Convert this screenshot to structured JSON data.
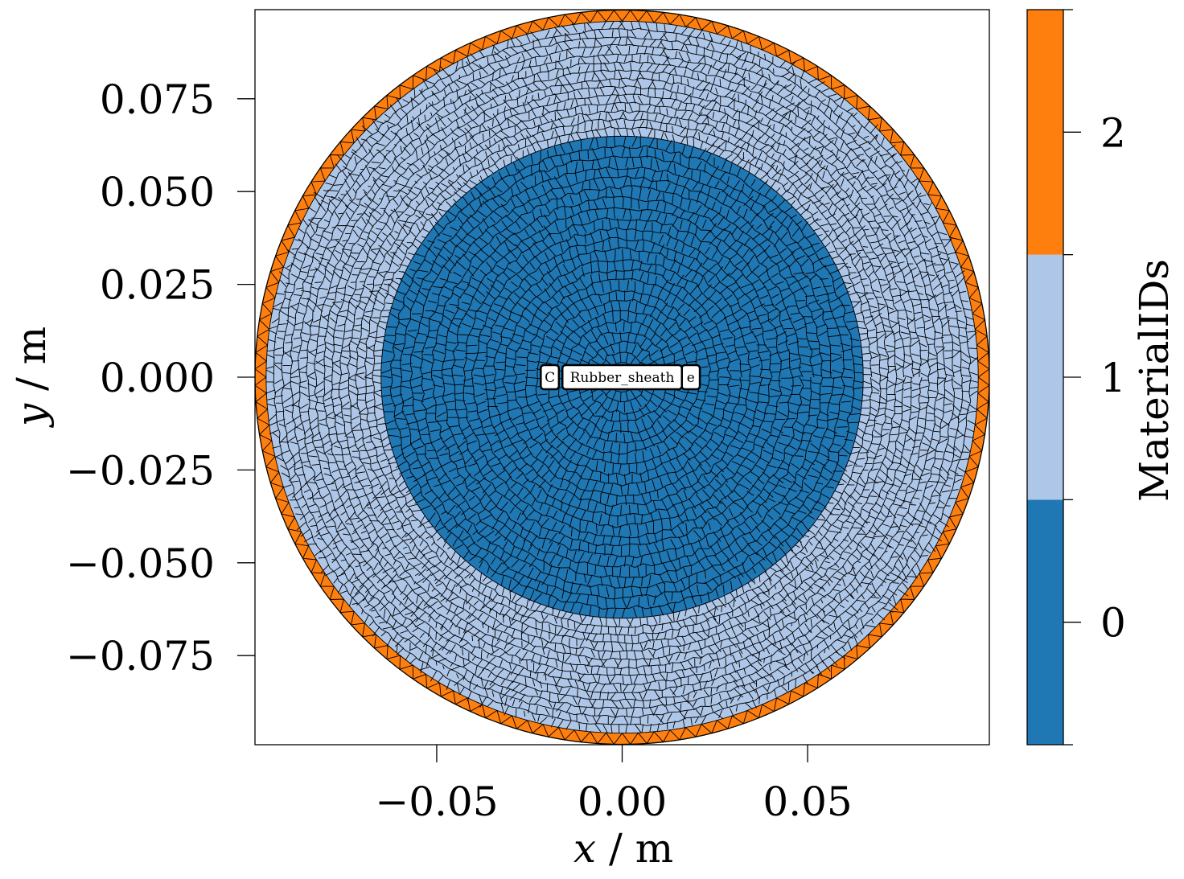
{
  "chart_data": {
    "type": "mesh",
    "xlabel_var": "x",
    "xlabel_unit": " / m",
    "ylabel_var": "y",
    "ylabel_unit": " / m",
    "xlim": [
      -0.099,
      0.099
    ],
    "ylim": [
      -0.099,
      0.099
    ],
    "xticks": [
      {
        "value": -0.05,
        "label": "−0.05"
      },
      {
        "value": 0.0,
        "label": "0.00"
      },
      {
        "value": 0.05,
        "label": "0.05"
      }
    ],
    "yticks": [
      {
        "value": 0.075,
        "label": "0.075"
      },
      {
        "value": 0.05,
        "label": "0.050"
      },
      {
        "value": 0.025,
        "label": "0.025"
      },
      {
        "value": 0.0,
        "label": "0.000"
      },
      {
        "value": -0.025,
        "label": "−0.025"
      },
      {
        "value": -0.05,
        "label": "−0.050"
      },
      {
        "value": -0.075,
        "label": "−0.075"
      }
    ],
    "regions": [
      {
        "material_id": 0,
        "inner_radius": 0.0,
        "outer_radius": 0.065,
        "color": "#1f77b4",
        "mesh": "quad"
      },
      {
        "material_id": 1,
        "inner_radius": 0.065,
        "outer_radius": 0.096,
        "color": "#aec7e8",
        "mesh": "quad"
      },
      {
        "material_id": 2,
        "inner_radius": 0.096,
        "outer_radius": 0.099,
        "color": "#ff7f0e",
        "mesh": "tri"
      }
    ],
    "annotations": [
      {
        "text": "C",
        "x": -0.0195,
        "y": 0.0
      },
      {
        "text": "e",
        "x": 0.0185,
        "y": 0.0
      },
      {
        "text": "Rubber_sheath",
        "x": 0.0,
        "y": 0.0
      }
    ],
    "colorbar": {
      "label": "MaterialIDs",
      "ticks": [
        {
          "value": 0,
          "label": "0"
        },
        {
          "value": 1,
          "label": "1"
        },
        {
          "value": 2,
          "label": "2"
        }
      ],
      "colors": [
        "#1f77b4",
        "#aec7e8",
        "#ff7f0e"
      ]
    }
  }
}
